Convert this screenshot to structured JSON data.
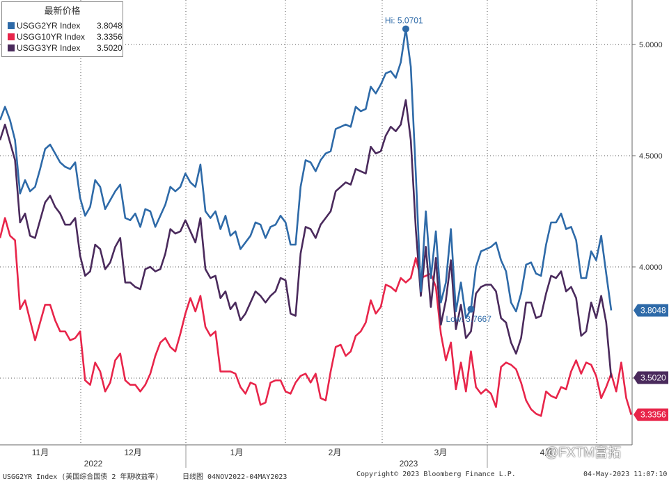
{
  "chart_data": {
    "type": "line",
    "y_range": [
      3.2,
      5.2
    ],
    "y_ticks": [
      3.5,
      4.0,
      4.5,
      5.0
    ],
    "y_tick_labels": [
      "",
      "4.0000",
      "4.5000",
      "5.0000"
    ],
    "y_axis_side": "right",
    "grid": true,
    "legend_position": "top-left",
    "x_month_labels": [
      "11月",
      "12月",
      "1月",
      "2月",
      "3月",
      "4月"
    ],
    "x_year_labels": [
      "2022",
      "2023"
    ],
    "legend_title": "最新价格",
    "series": [
      {
        "name": "USGG2YR Index",
        "last_value": "3.8048",
        "color": "#2e6aa8",
        "values": [
          4.66,
          4.72,
          4.66,
          4.57,
          4.33,
          4.39,
          4.34,
          4.36,
          4.44,
          4.53,
          4.55,
          4.51,
          4.47,
          4.45,
          4.44,
          4.47,
          4.31,
          4.23,
          4.27,
          4.39,
          4.36,
          4.26,
          4.3,
          4.34,
          4.37,
          4.22,
          4.21,
          4.24,
          4.18,
          4.26,
          4.25,
          4.18,
          4.23,
          4.28,
          4.36,
          4.34,
          4.36,
          4.42,
          4.38,
          4.36,
          4.46,
          4.25,
          4.22,
          4.25,
          4.17,
          4.23,
          4.14,
          4.16,
          4.08,
          4.11,
          4.14,
          4.2,
          4.19,
          4.13,
          4.18,
          4.19,
          4.23,
          4.2,
          4.1,
          4.1,
          4.36,
          4.48,
          4.47,
          4.43,
          4.48,
          4.51,
          4.52,
          4.62,
          4.63,
          4.64,
          4.63,
          4.72,
          4.7,
          4.71,
          4.81,
          4.78,
          4.82,
          4.87,
          4.88,
          4.85,
          4.92,
          5.0701,
          4.9,
          4.42,
          3.89,
          4.25,
          3.95,
          4.16,
          3.84,
          3.93,
          4.17,
          3.8,
          3.93,
          3.77,
          3.81,
          4.0,
          4.07,
          4.08,
          4.09,
          4.11,
          4.03,
          3.98,
          3.84,
          3.8,
          3.88,
          4.01,
          4.02,
          3.97,
          3.96,
          4.1,
          4.2,
          4.2,
          4.24,
          4.17,
          4.18,
          4.12,
          3.95,
          3.95,
          4.07,
          4.03,
          4.14,
          3.97,
          3.8048
        ]
      },
      {
        "name": "USGG10YR Index",
        "last_value": "3.3356",
        "color": "#e8254a",
        "values": [
          4.13,
          4.22,
          4.14,
          4.12,
          3.81,
          3.85,
          3.76,
          3.67,
          3.75,
          3.83,
          3.83,
          3.76,
          3.71,
          3.71,
          3.67,
          3.68,
          3.71,
          3.49,
          3.47,
          3.57,
          3.53,
          3.44,
          3.48,
          3.58,
          3.61,
          3.49,
          3.47,
          3.47,
          3.44,
          3.47,
          3.52,
          3.6,
          3.66,
          3.68,
          3.64,
          3.62,
          3.7,
          3.79,
          3.86,
          3.8,
          3.87,
          3.73,
          3.69,
          3.71,
          3.53,
          3.53,
          3.53,
          3.52,
          3.46,
          3.43,
          3.48,
          3.47,
          3.38,
          3.39,
          3.48,
          3.49,
          3.49,
          3.44,
          3.43,
          3.48,
          3.51,
          3.52,
          3.48,
          3.52,
          3.41,
          3.4,
          3.53,
          3.64,
          3.65,
          3.6,
          3.62,
          3.69,
          3.71,
          3.75,
          3.85,
          3.79,
          3.82,
          3.92,
          3.91,
          3.89,
          3.95,
          3.93,
          3.95,
          4.04,
          3.95,
          3.96,
          3.97,
          3.91,
          3.7,
          3.58,
          3.66,
          3.45,
          3.57,
          3.44,
          3.62,
          3.46,
          3.43,
          3.45,
          3.43,
          3.37,
          3.55,
          3.57,
          3.56,
          3.54,
          3.48,
          3.4,
          3.36,
          3.34,
          3.33,
          3.44,
          3.42,
          3.41,
          3.46,
          3.45,
          3.53,
          3.58,
          3.52,
          3.57,
          3.56,
          3.51,
          3.41,
          3.46,
          3.52,
          3.44,
          3.57,
          3.41,
          3.3356
        ]
      },
      {
        "name": "USGG3YR Index",
        "last_value": "3.5020",
        "color": "#4a2a5c",
        "values": [
          4.57,
          4.64,
          4.56,
          4.48,
          4.2,
          4.24,
          4.14,
          4.13,
          4.21,
          4.29,
          4.32,
          4.27,
          4.24,
          4.19,
          4.19,
          4.22,
          4.05,
          3.96,
          3.98,
          4.1,
          4.08,
          3.99,
          4.02,
          4.09,
          4.13,
          3.93,
          3.93,
          3.91,
          3.9,
          3.99,
          4.0,
          3.98,
          3.99,
          4.06,
          4.17,
          4.15,
          4.16,
          4.21,
          4.16,
          4.11,
          4.22,
          3.99,
          3.95,
          3.96,
          3.86,
          3.89,
          3.81,
          3.84,
          3.76,
          3.79,
          3.84,
          3.89,
          3.87,
          3.84,
          3.87,
          3.89,
          3.95,
          3.94,
          3.79,
          3.78,
          4.06,
          4.18,
          4.17,
          4.13,
          4.19,
          4.22,
          4.25,
          4.34,
          4.36,
          4.38,
          4.37,
          4.44,
          4.43,
          4.42,
          4.54,
          4.51,
          4.52,
          4.59,
          4.63,
          4.61,
          4.64,
          4.75,
          4.57,
          4.17,
          3.87,
          4.09,
          3.82,
          4.04,
          3.74,
          3.85,
          4.03,
          3.72,
          3.83,
          3.68,
          3.71,
          3.88,
          3.91,
          3.92,
          3.92,
          3.89,
          3.77,
          3.75,
          3.66,
          3.61,
          3.68,
          3.84,
          3.84,
          3.77,
          3.78,
          3.88,
          3.96,
          3.95,
          3.98,
          3.89,
          3.91,
          3.86,
          3.69,
          3.71,
          3.84,
          3.77,
          3.87,
          3.75,
          3.502
        ]
      }
    ],
    "annotations": [
      {
        "text": "Hi: 5.0701",
        "series": 0,
        "index": 81
      },
      {
        "text": "Low: 3.7667",
        "series": 0,
        "index": 94
      }
    ]
  },
  "footer": {
    "left": "USGG2YR Index (美国综合国债 2 年期收益率)",
    "mid": "日线图 04NOV2022-04MAY2023",
    "copyright": "Copyright© 2023 Bloomberg Finance L.P.",
    "timestamp": "04-May-2023 11:07:10"
  },
  "watermark": "@FXTM富拓"
}
